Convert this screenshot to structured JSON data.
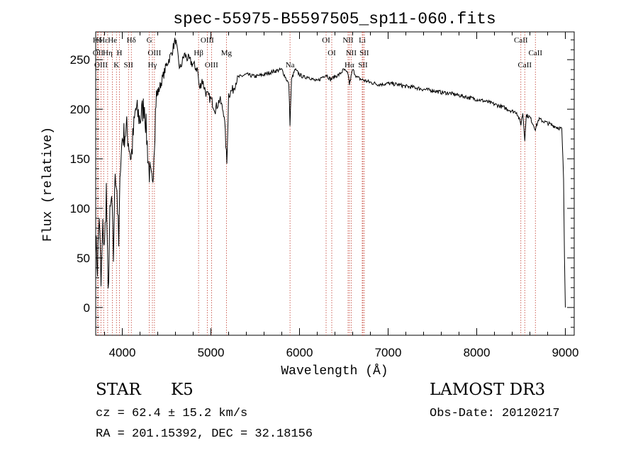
{
  "chart_data": {
    "type": "line",
    "title": "spec-55975-B5597505_sp11-060.fits",
    "xlabel": "Wavelength (Å)",
    "ylabel": "Flux (relative)",
    "xlim": [
      3700,
      9100
    ],
    "ylim": [
      -28,
      278
    ],
    "xticks": [
      4000,
      5000,
      6000,
      7000,
      8000,
      9000
    ],
    "yticks": [
      0,
      50,
      100,
      150,
      200,
      250
    ],
    "grid": false,
    "legend": "none",
    "series": [
      {
        "color": "#000000",
        "points": [
          [
            3700,
            70
          ],
          [
            3720,
            40
          ],
          [
            3740,
            95
          ],
          [
            3760,
            20
          ],
          [
            3780,
            80
          ],
          [
            3800,
            60
          ],
          [
            3820,
            120
          ],
          [
            3840,
            10
          ],
          [
            3860,
            90
          ],
          [
            3880,
            110
          ],
          [
            3900,
            50
          ],
          [
            3920,
            140
          ],
          [
            3940,
            120
          ],
          [
            3960,
            60
          ],
          [
            3980,
            150
          ],
          [
            4000,
            170
          ],
          [
            4050,
            180
          ],
          [
            4100,
            150
          ],
          [
            4150,
            200
          ],
          [
            4200,
            190
          ],
          [
            4250,
            205
          ],
          [
            4300,
            140
          ],
          [
            4340,
            120
          ],
          [
            4380,
            210
          ],
          [
            4450,
            230
          ],
          [
            4500,
            245
          ],
          [
            4550,
            255
          ],
          [
            4600,
            270
          ],
          [
            4650,
            240
          ],
          [
            4700,
            255
          ],
          [
            4750,
            250
          ],
          [
            4800,
            245
          ],
          [
            4850,
            240
          ],
          [
            4870,
            220
          ],
          [
            4900,
            230
          ],
          [
            4950,
            215
          ],
          [
            5000,
            210
          ],
          [
            5050,
            200
          ],
          [
            5100,
            210
          ],
          [
            5150,
            195
          ],
          [
            5180,
            145
          ],
          [
            5200,
            215
          ],
          [
            5250,
            220
          ],
          [
            5300,
            232
          ],
          [
            5400,
            235
          ],
          [
            5500,
            233
          ],
          [
            5600,
            235
          ],
          [
            5700,
            238
          ],
          [
            5800,
            240
          ],
          [
            5880,
            225
          ],
          [
            5893,
            185
          ],
          [
            5910,
            230
          ],
          [
            5950,
            240
          ],
          [
            6000,
            235
          ],
          [
            6050,
            232
          ],
          [
            6100,
            233
          ],
          [
            6150,
            230
          ],
          [
            6200,
            228
          ],
          [
            6250,
            232
          ],
          [
            6300,
            235
          ],
          [
            6350,
            230
          ],
          [
            6400,
            233
          ],
          [
            6450,
            235
          ],
          [
            6500,
            240
          ],
          [
            6550,
            235
          ],
          [
            6563,
            225
          ],
          [
            6600,
            240
          ],
          [
            6650,
            232
          ],
          [
            6700,
            230
          ],
          [
            6800,
            227
          ],
          [
            6900,
            225
          ],
          [
            7000,
            226
          ],
          [
            7100,
            225
          ],
          [
            7200,
            223
          ],
          [
            7300,
            222
          ],
          [
            7400,
            220
          ],
          [
            7500,
            219
          ],
          [
            7600,
            217
          ],
          [
            7700,
            216
          ],
          [
            7800,
            214
          ],
          [
            7900,
            212
          ],
          [
            8000,
            210
          ],
          [
            8100,
            208
          ],
          [
            8200,
            205
          ],
          [
            8300,
            202
          ],
          [
            8400,
            198
          ],
          [
            8450,
            197
          ],
          [
            8498,
            185
          ],
          [
            8520,
            196
          ],
          [
            8542,
            170
          ],
          [
            8560,
            194
          ],
          [
            8600,
            192
          ],
          [
            8662,
            180
          ],
          [
            8700,
            190
          ],
          [
            8800,
            186
          ],
          [
            8900,
            182
          ],
          [
            8960,
            180
          ],
          [
            8980,
            130
          ],
          [
            8990,
            50
          ],
          [
            9000,
            0
          ]
        ]
      }
    ],
    "line_labels": [
      {
        "text": "Hδ",
        "x": 3720
      },
      {
        "text": "OII",
        "x": 3727
      },
      {
        "text": "OIII",
        "x": 3760
      },
      {
        "text": "Hε",
        "x": 3790
      },
      {
        "text": "Hη",
        "x": 3835
      },
      {
        "text": "K",
        "x": 3934
      },
      {
        "text": "He",
        "x": 3889
      },
      {
        "text": "H",
        "x": 3968
      },
      {
        "text": "SII",
        "x": 4070
      },
      {
        "text": "Hδ",
        "x": 4102
      },
      {
        "text": "OIII",
        "x": 4363
      },
      {
        "text": "Hγ",
        "x": 4340
      },
      {
        "text": "G",
        "x": 4305
      },
      {
        "text": "Hβ",
        "x": 4861
      },
      {
        "text": "OIII",
        "x": 5007
      },
      {
        "text": "OIII",
        "x": 4959
      },
      {
        "text": "Mg",
        "x": 5175
      },
      {
        "text": "Na",
        "x": 5893
      },
      {
        "text": "OI",
        "x": 6300
      },
      {
        "text": "OI",
        "x": 6364
      },
      {
        "text": "Hα",
        "x": 6563
      },
      {
        "text": "NII",
        "x": 6548
      },
      {
        "text": "NII",
        "x": 6583
      },
      {
        "text": "SII",
        "x": 6716
      },
      {
        "text": "Li",
        "x": 6708
      },
      {
        "text": "SII",
        "x": 6731
      },
      {
        "text": "CaII",
        "x": 8542
      },
      {
        "text": "CaII",
        "x": 8498
      },
      {
        "text": "CaII",
        "x": 8662
      }
    ]
  },
  "info": {
    "class_label": "STAR",
    "subclass": "K5",
    "survey": "LAMOST DR3",
    "velocity": "cz = 62.4 ± 15.2 km/s",
    "obs_date": "Obs-Date: 20120217",
    "coords": "RA = 201.15392, DEC =  32.18156"
  }
}
